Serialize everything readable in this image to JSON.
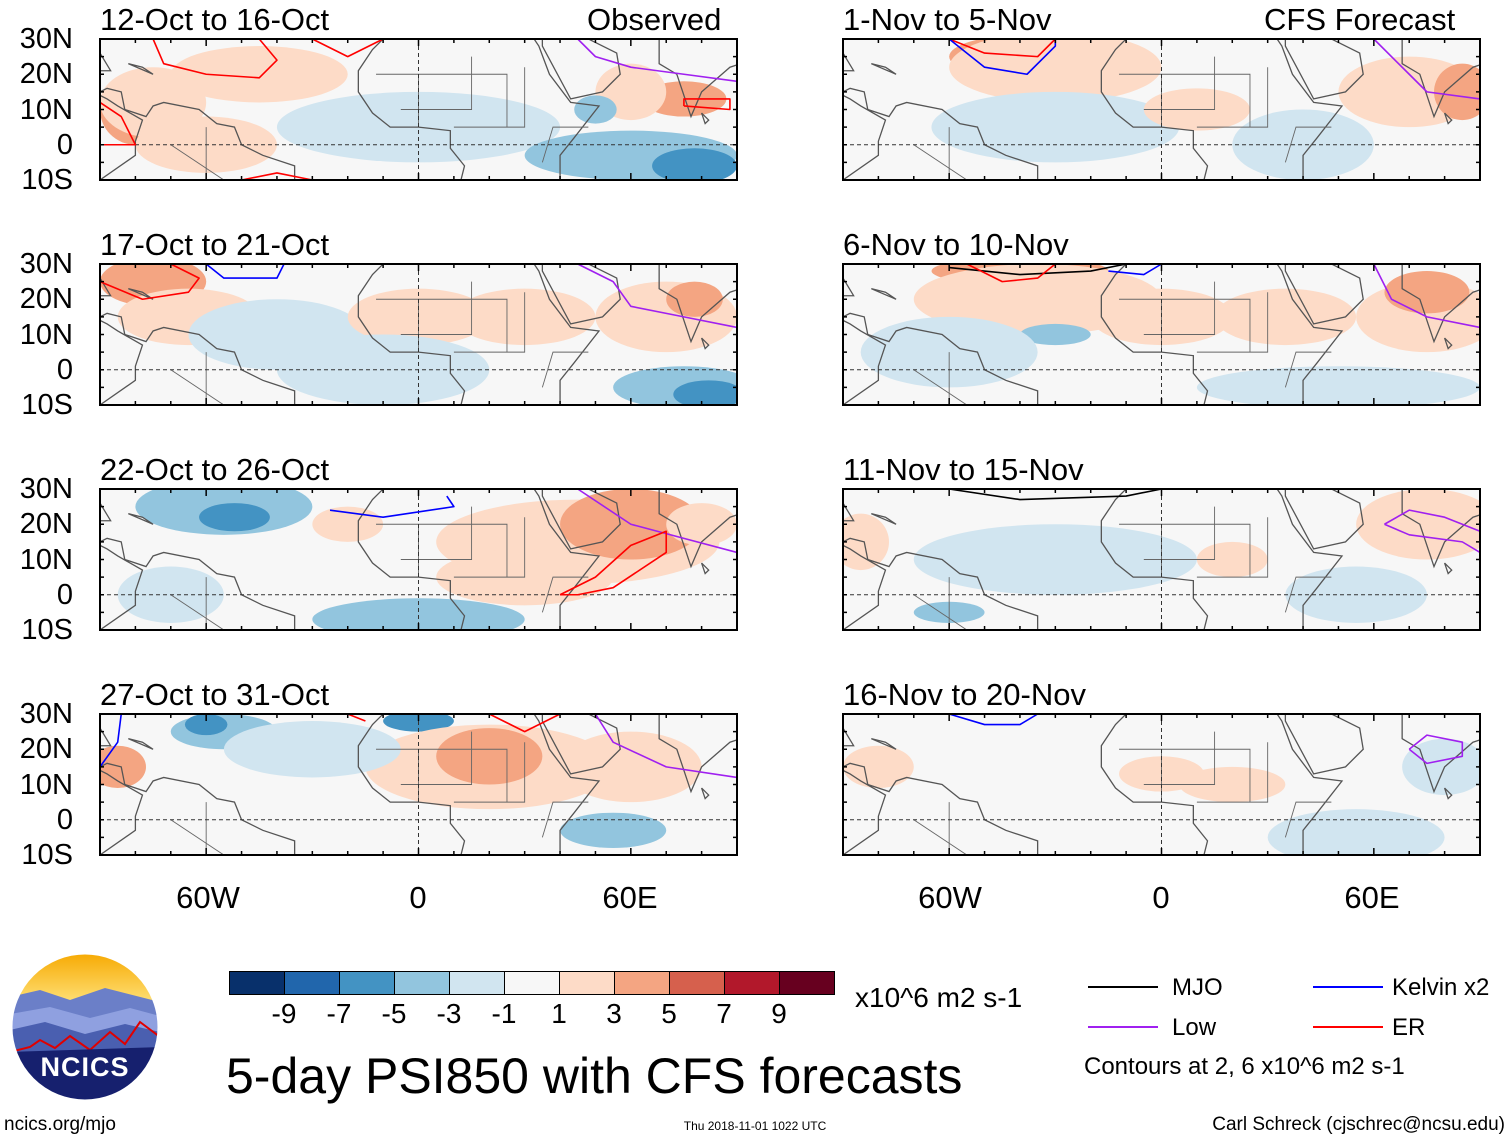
{
  "header": {
    "left_label": "Observed",
    "right_label": "CFS Forecast"
  },
  "panels": {
    "observed": [
      {
        "title": "12-Oct to 16-Oct"
      },
      {
        "title": "17-Oct to 21-Oct"
      },
      {
        "title": "22-Oct to 26-Oct"
      },
      {
        "title": "27-Oct to 31-Oct"
      }
    ],
    "forecast": [
      {
        "title": "1-Nov to 5-Nov"
      },
      {
        "title": "6-Nov to 10-Nov"
      },
      {
        "title": "11-Nov to 15-Nov"
      },
      {
        "title": "16-Nov to 20-Nov"
      }
    ]
  },
  "axes": {
    "lat_labels": [
      "30N",
      "20N",
      "10N",
      "0",
      "10S"
    ],
    "lon_labels": [
      "60W",
      "0",
      "60E"
    ]
  },
  "colorbar": {
    "colors": [
      "#08306b",
      "#2166ac",
      "#4393c3",
      "#92c5de",
      "#d1e5f0",
      "#f7f7f7",
      "#fddbc7",
      "#f4a582",
      "#d6604d",
      "#b2182b",
      "#67001f"
    ],
    "labels": [
      "-9",
      "-7",
      "-5",
      "-3",
      "-1",
      "1",
      "3",
      "5",
      "7",
      "9"
    ],
    "units": "x10^6 m2 s-1"
  },
  "legend": {
    "items": [
      {
        "label": "MJO",
        "color": "#000000"
      },
      {
        "label": "Kelvin x2",
        "color": "#0000ff"
      },
      {
        "label": "Low",
        "color": "#a020f0"
      },
      {
        "label": "ER",
        "color": "#ff0000"
      }
    ],
    "contours_note": "Contours at 2, 6 x10^6 m2 s-1"
  },
  "title": "5-day PSI850 with CFS forecasts",
  "logo_text": "NCICS",
  "footer": {
    "url": "ncics.org/mjo",
    "timestamp": "Thu 2018-11-01 1022 UTC",
    "credit": "Carl Schreck (cjschrec@ncsu.edu)"
  }
}
